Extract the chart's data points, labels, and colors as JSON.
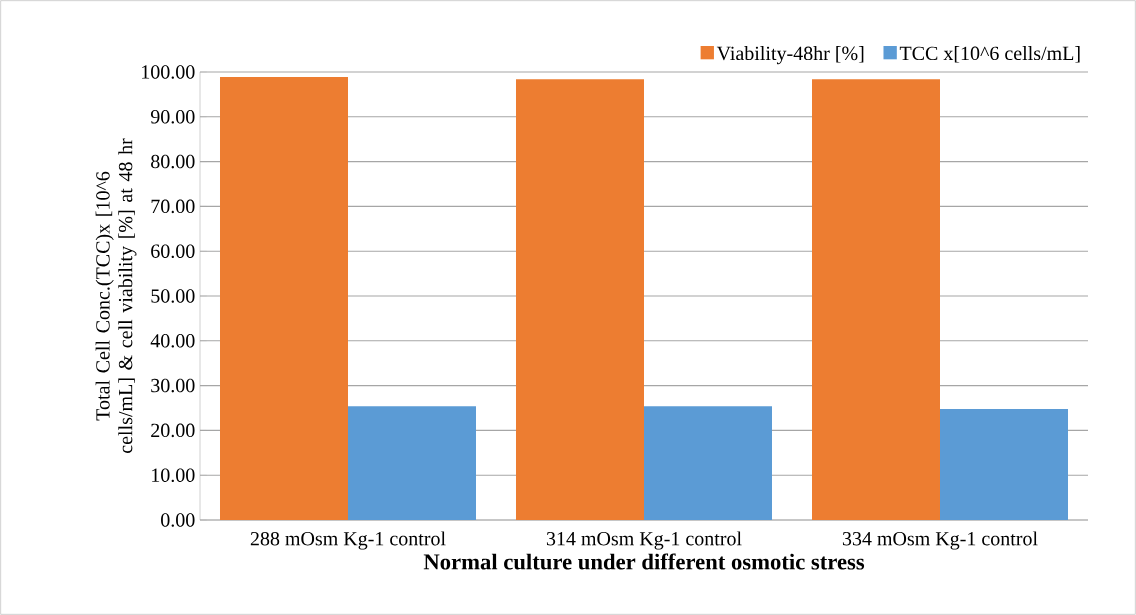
{
  "chart_data": {
    "type": "bar",
    "xlabel": "Normal culture under different osmotic stress",
    "ylabel": "Total Cell Conc.(TCC)x [10^6 cells/mL] & cell viability [%] at 48 hr",
    "categories": [
      "288 mOsm Kg-1 control",
      "314 mOsm Kg-1 control",
      "334 mOsm Kg-1 control"
    ],
    "series": [
      {
        "name": "Viability-48hr [%]",
        "color": "#ed7d31",
        "values": [
          98.9,
          98.4,
          98.4
        ]
      },
      {
        "name": "TCC x[10^6 cells/mL]",
        "color": "#5b9bd5",
        "values": [
          25.4,
          25.4,
          24.8
        ]
      }
    ],
    "ylim": [
      0,
      100
    ],
    "yticks": [
      {
        "value": 0,
        "label": "0.00"
      },
      {
        "value": 10,
        "label": "10.00"
      },
      {
        "value": 20,
        "label": "20.00"
      },
      {
        "value": 30,
        "label": "30.00"
      },
      {
        "value": 40,
        "label": "40.00"
      },
      {
        "value": 50,
        "label": "50.00"
      },
      {
        "value": 60,
        "label": "60.00"
      },
      {
        "value": 70,
        "label": "70.00"
      },
      {
        "value": 80,
        "label": "80.00"
      },
      {
        "value": 90,
        "label": "90.00"
      },
      {
        "value": 100,
        "label": "100.00"
      }
    ],
    "grid": "y",
    "legend": "top right"
  }
}
